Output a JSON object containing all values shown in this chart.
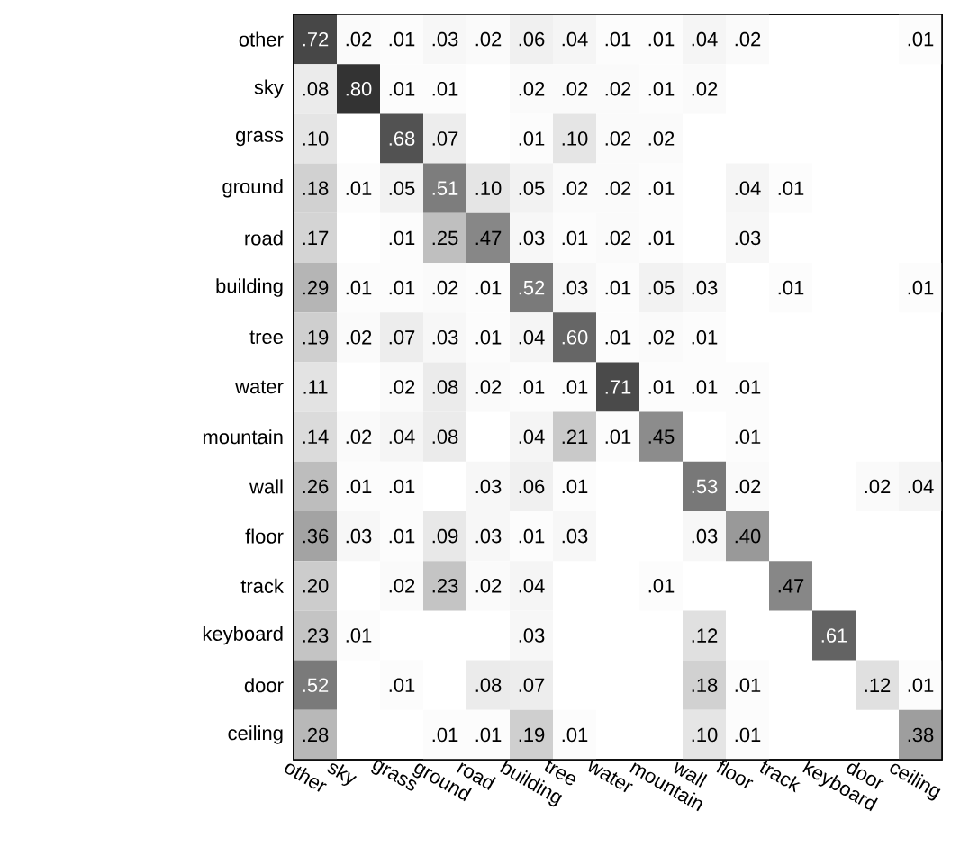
{
  "chart_data": {
    "type": "heatmap",
    "categories": [
      "other",
      "sky",
      "grass",
      "ground",
      "road",
      "building",
      "tree",
      "water",
      "mountain",
      "wall",
      "floor",
      "track",
      "keyboard",
      "door",
      "ceiling"
    ],
    "y_categories": [
      "other",
      "sky",
      "grass",
      "ground",
      "road",
      "building",
      "tree",
      "water",
      "mountain",
      "wall",
      "floor",
      "track",
      "keyboard",
      "door",
      "ceiling"
    ],
    "cells": [
      [
        0.72,
        0.02,
        0.01,
        0.03,
        0.02,
        0.06,
        0.04,
        0.01,
        0.01,
        0.04,
        0.02,
        null,
        null,
        null,
        0.01
      ],
      [
        0.08,
        0.8,
        0.01,
        0.01,
        null,
        0.02,
        0.02,
        0.02,
        0.01,
        0.02,
        null,
        null,
        null,
        null,
        null
      ],
      [
        0.1,
        null,
        0.68,
        0.07,
        null,
        0.01,
        0.1,
        0.02,
        0.02,
        null,
        null,
        null,
        null,
        null,
        null
      ],
      [
        0.18,
        0.01,
        0.05,
        0.51,
        0.1,
        0.05,
        0.02,
        0.02,
        0.01,
        null,
        0.04,
        0.01,
        null,
        null,
        null
      ],
      [
        0.17,
        null,
        0.01,
        0.25,
        0.47,
        0.03,
        0.01,
        0.02,
        0.01,
        null,
        0.03,
        null,
        null,
        null,
        null
      ],
      [
        0.29,
        0.01,
        0.01,
        0.02,
        0.01,
        0.52,
        0.03,
        0.01,
        0.05,
        0.03,
        null,
        0.01,
        null,
        null,
        0.01
      ],
      [
        0.19,
        0.02,
        0.07,
        0.03,
        0.01,
        0.04,
        0.6,
        0.01,
        0.02,
        0.01,
        null,
        null,
        null,
        null,
        null
      ],
      [
        0.11,
        null,
        0.02,
        0.08,
        0.02,
        0.01,
        0.01,
        0.71,
        0.01,
        0.01,
        0.01,
        null,
        null,
        null,
        null
      ],
      [
        0.14,
        0.02,
        0.04,
        0.08,
        null,
        0.04,
        0.21,
        0.01,
        0.45,
        null,
        0.01,
        null,
        null,
        null,
        null
      ],
      [
        0.26,
        0.01,
        0.01,
        null,
        0.03,
        0.06,
        0.01,
        null,
        null,
        0.53,
        0.02,
        null,
        null,
        0.02,
        0.04
      ],
      [
        0.36,
        0.03,
        0.01,
        0.09,
        0.03,
        0.01,
        0.03,
        null,
        null,
        0.03,
        0.4,
        null,
        null,
        null,
        null
      ],
      [
        0.2,
        null,
        0.02,
        0.23,
        0.02,
        0.04,
        null,
        null,
        0.01,
        null,
        null,
        0.47,
        null,
        null,
        null
      ],
      [
        0.23,
        0.01,
        null,
        null,
        null,
        0.03,
        null,
        null,
        null,
        0.12,
        null,
        null,
        0.61,
        null,
        null
      ],
      [
        0.52,
        null,
        0.01,
        null,
        0.08,
        0.07,
        null,
        null,
        null,
        0.18,
        0.01,
        null,
        null,
        0.12,
        0.01
      ],
      [
        0.28,
        null,
        null,
        0.01,
        0.01,
        0.19,
        0.01,
        null,
        null,
        0.1,
        0.01,
        null,
        null,
        null,
        0.38
      ]
    ],
    "cell_labels": [
      [
        ".72",
        ".02",
        ".01",
        ".03",
        ".02",
        ".06",
        ".04",
        ".01",
        ".01",
        ".04",
        ".02",
        null,
        null,
        null,
        ".01"
      ],
      [
        ".08",
        ".80",
        ".01",
        ".01",
        null,
        ".02",
        ".02",
        ".02",
        ".01",
        ".02",
        null,
        null,
        null,
        null,
        null
      ],
      [
        ".10",
        null,
        ".68",
        ".07",
        null,
        ".01",
        ".10",
        ".02",
        ".02",
        null,
        null,
        null,
        null,
        null,
        null
      ],
      [
        ".18",
        ".01",
        ".05",
        ".51",
        ".10",
        ".05",
        ".02",
        ".02",
        ".01",
        null,
        ".04",
        ".01",
        null,
        null,
        null
      ],
      [
        ".17",
        null,
        ".01",
        ".25",
        ".47",
        ".03",
        ".01",
        ".02",
        ".01",
        null,
        ".03",
        null,
        null,
        null,
        null
      ],
      [
        ".29",
        ".01",
        ".01",
        ".02",
        ".01",
        ".52",
        ".03",
        ".01",
        ".05",
        ".03",
        null,
        ".01",
        null,
        null,
        ".01"
      ],
      [
        ".19",
        ".02",
        ".07",
        ".03",
        ".01",
        ".04",
        ".60",
        ".01",
        ".02",
        ".01",
        null,
        null,
        null,
        null,
        null
      ],
      [
        ".11",
        null,
        ".02",
        ".08",
        ".02",
        ".01",
        ".01",
        ".71",
        ".01",
        ".01",
        ".01",
        null,
        null,
        null,
        null
      ],
      [
        ".14",
        ".02",
        ".04",
        ".08",
        null,
        ".04",
        ".21",
        ".01",
        ".45",
        null,
        ".01",
        null,
        null,
        null,
        null
      ],
      [
        ".26",
        ".01",
        ".01",
        null,
        ".03",
        ".06",
        ".01",
        null,
        null,
        ".53",
        ".02",
        null,
        null,
        ".02",
        ".04"
      ],
      [
        ".36",
        ".03",
        ".01",
        ".09",
        ".03",
        ".01",
        ".03",
        null,
        null,
        ".03",
        ".40",
        null,
        null,
        null,
        null
      ],
      [
        ".20",
        null,
        ".02",
        ".23",
        ".02",
        ".04",
        null,
        null,
        ".01",
        null,
        null,
        ".47",
        null,
        null,
        null
      ],
      [
        ".23",
        ".01",
        null,
        null,
        null,
        ".03",
        null,
        null,
        null,
        ".12",
        null,
        null,
        ".61",
        null,
        null
      ],
      [
        ".52",
        null,
        ".01",
        null,
        ".08",
        ".07",
        null,
        null,
        null,
        ".18",
        ".01",
        null,
        null,
        ".12",
        ".01"
      ],
      [
        ".28",
        null,
        null,
        ".01",
        ".01",
        ".19",
        ".01",
        null,
        null,
        ".10",
        ".01",
        null,
        null,
        null,
        ".38"
      ]
    ]
  }
}
